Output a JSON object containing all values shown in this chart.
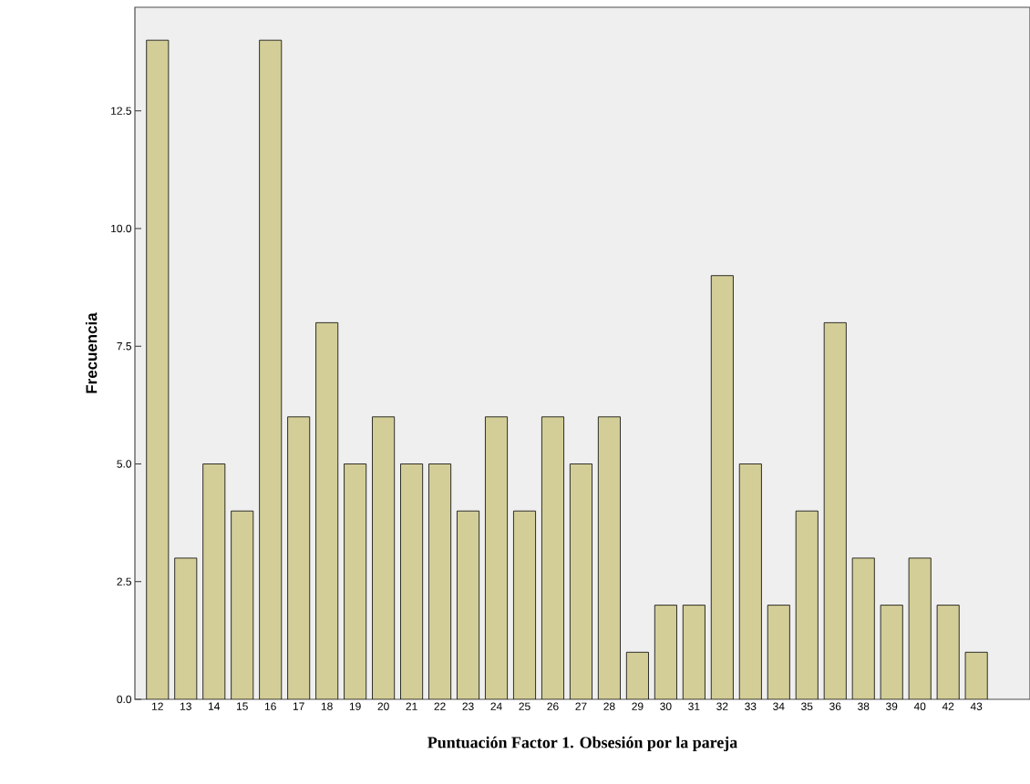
{
  "chart_data": {
    "type": "bar",
    "xlabel": "Puntuación Factor 1. Obsesión por la pareja",
    "ylabel": "Frecuencia",
    "categories": [
      "12",
      "13",
      "14",
      "15",
      "16",
      "17",
      "18",
      "19",
      "20",
      "21",
      "22",
      "23",
      "24",
      "25",
      "26",
      "27",
      "28",
      "29",
      "30",
      "31",
      "32",
      "33",
      "34",
      "35",
      "36",
      "38",
      "39",
      "40",
      "42",
      "43"
    ],
    "values": [
      14,
      3,
      5,
      4,
      14,
      6,
      8,
      5,
      6,
      5,
      5,
      4,
      6,
      4,
      6,
      5,
      6,
      1,
      2,
      2,
      9,
      5,
      2,
      4,
      8,
      3,
      2,
      3,
      2,
      1
    ],
    "color": "#d3ce97",
    "ylim": [
      0,
      14.7
    ],
    "yticks": [
      {
        "value": 0,
        "label": "0.0"
      },
      {
        "value": 2.5,
        "label": "2.5"
      },
      {
        "value": 5,
        "label": "5.0"
      },
      {
        "value": 7.5,
        "label": "7.5"
      },
      {
        "value": 10,
        "label": "10.0"
      },
      {
        "value": 12.5,
        "label": "12.5"
      }
    ],
    "grid": false
  }
}
